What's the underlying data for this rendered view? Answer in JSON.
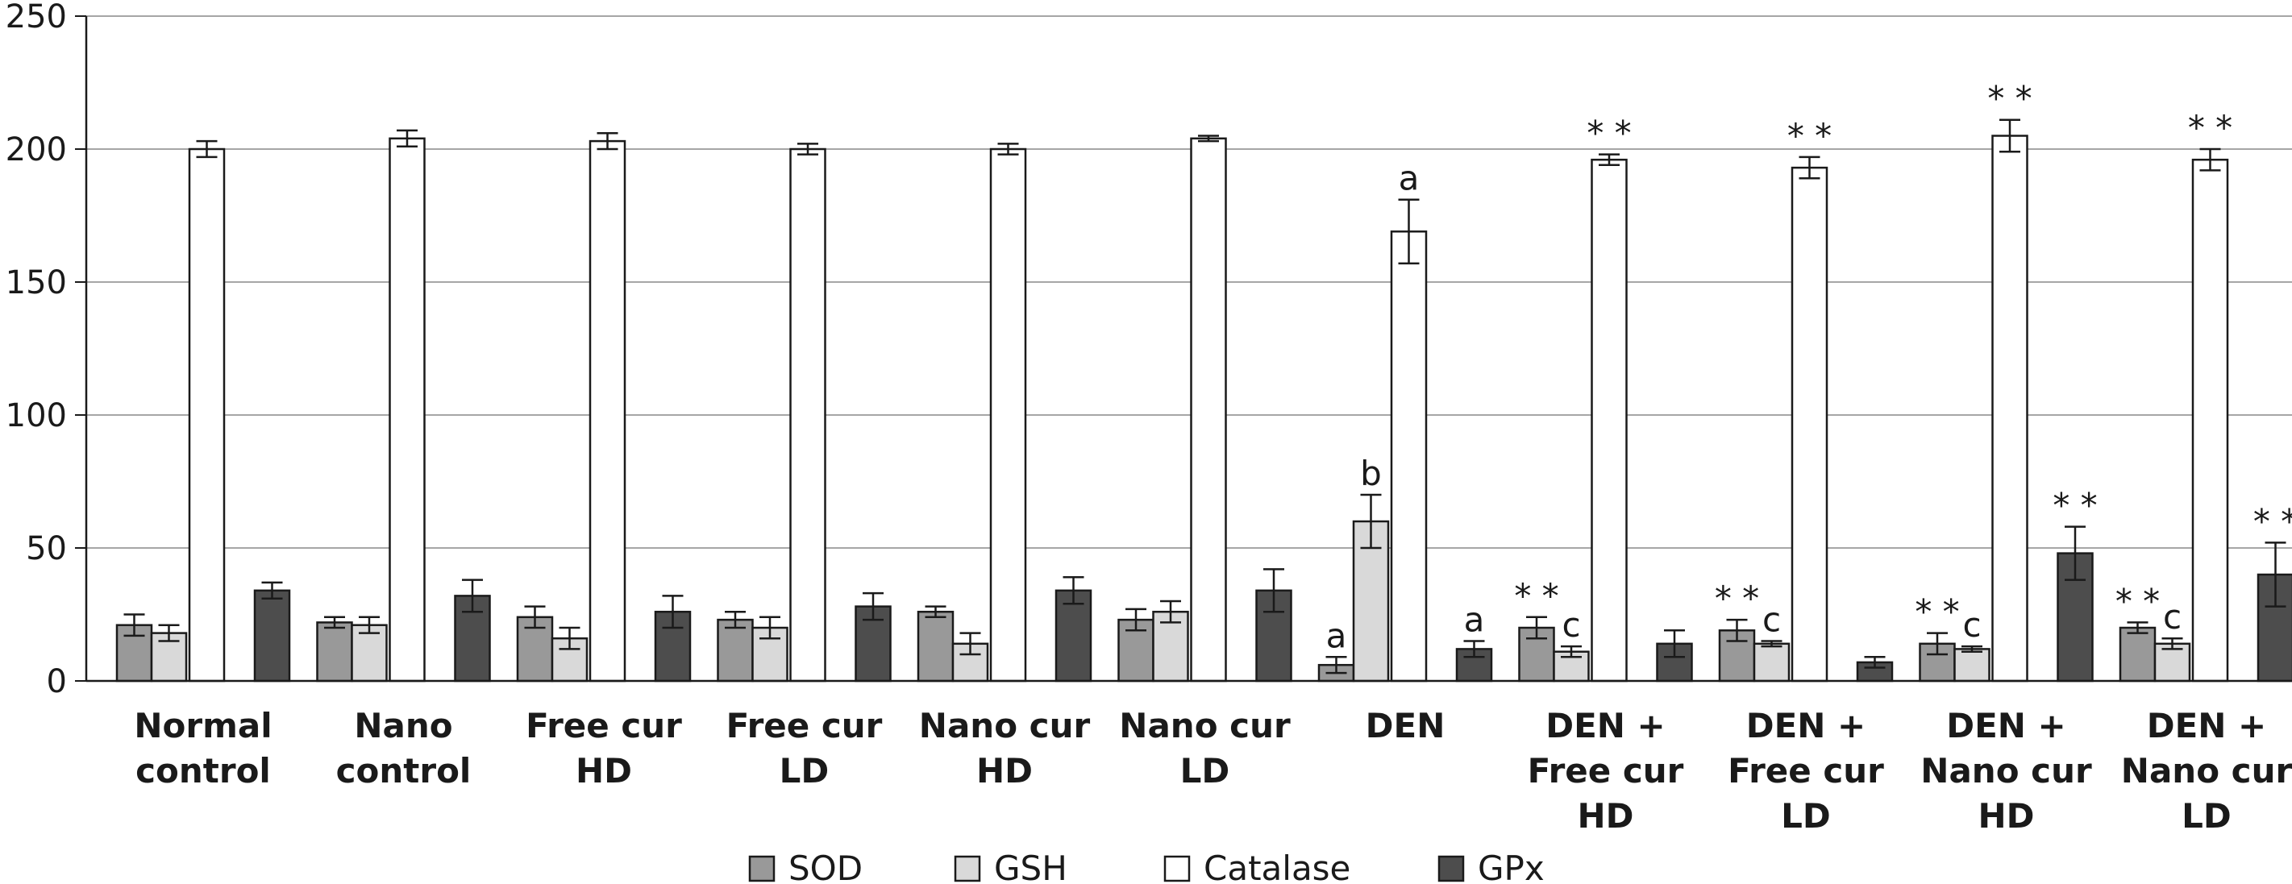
{
  "chart_data": {
    "type": "bar",
    "title": "",
    "xlabel": "",
    "ylabel": "",
    "ylim": [
      0,
      250
    ],
    "yticks": [
      0,
      50,
      100,
      150,
      200,
      250
    ],
    "grid": true,
    "legend_position": "bottom",
    "categories": [
      [
        "Normal",
        "control"
      ],
      [
        "Nano",
        "control"
      ],
      [
        "Free cur",
        "HD"
      ],
      [
        "Free cur",
        "LD"
      ],
      [
        "Nano cur",
        "HD"
      ],
      [
        "Nano cur",
        "LD"
      ],
      [
        "DEN"
      ],
      [
        "DEN +",
        "Free cur",
        "HD"
      ],
      [
        "DEN +",
        "Free cur",
        "LD"
      ],
      [
        "DEN +",
        "Nano cur",
        "HD"
      ],
      [
        "DEN +",
        "Nano cur",
        "LD"
      ]
    ],
    "series": [
      {
        "name": "SOD",
        "color": "#999999",
        "values": [
          21,
          22,
          24,
          23,
          26,
          23,
          6,
          20,
          19,
          14,
          20
        ],
        "errors": [
          4,
          2,
          4,
          3,
          2,
          4,
          3,
          4,
          4,
          4,
          2
        ],
        "annotations": [
          "",
          "",
          "",
          "",
          "",
          "",
          "a",
          "* *",
          "* *",
          "* *",
          "* *"
        ]
      },
      {
        "name": "GSH",
        "color": "#d9d9d9",
        "values": [
          18,
          21,
          16,
          20,
          14,
          26,
          60,
          11,
          14,
          12,
          14
        ],
        "errors": [
          3,
          3,
          4,
          4,
          4,
          4,
          10,
          2,
          1,
          1,
          2
        ],
        "annotations": [
          "",
          "",
          "",
          "",
          "",
          "",
          "b",
          "c",
          "c",
          "c",
          "c"
        ]
      },
      {
        "name": "Catalase",
        "color": "#ffffff",
        "values": [
          200,
          204,
          203,
          200,
          200,
          204,
          169,
          196,
          193,
          205,
          196
        ],
        "errors": [
          3,
          3,
          3,
          2,
          2,
          1,
          12,
          2,
          4,
          6,
          4
        ],
        "annotations": [
          "",
          "",
          "",
          "",
          "",
          "",
          "a",
          "* *",
          "* *",
          "* *",
          "* *"
        ]
      },
      {
        "name": "GPx",
        "color": "#4d4d4d",
        "values": [
          34,
          32,
          26,
          28,
          34,
          34,
          12,
          14,
          7,
          48,
          40
        ],
        "errors": [
          3,
          6,
          6,
          5,
          5,
          8,
          3,
          5,
          2,
          10,
          12
        ],
        "annotations": [
          "",
          "",
          "",
          "",
          "",
          "",
          "a",
          "",
          "",
          "* *",
          "* *"
        ]
      }
    ]
  }
}
